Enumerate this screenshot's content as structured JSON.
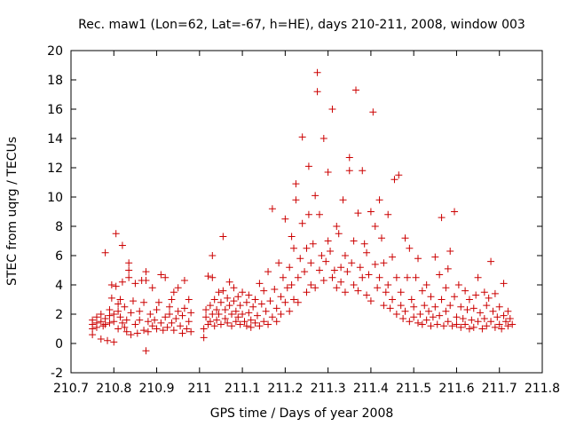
{
  "chart_data": {
    "type": "scatter",
    "title": "Rec. maw1 (Lon=62, Lat=-67, h=HE), days 210-211, 2008, window 003",
    "xlabel": "GPS time / Days of year 2008",
    "ylabel": "STEC from uqrg / TECUs",
    "xlim": [
      210.7,
      211.8
    ],
    "ylim": [
      -2,
      20
    ],
    "x_ticks": [
      "210.7",
      "210.8",
      "210.9",
      "211",
      "211.1",
      "211.2",
      "211.3",
      "211.4",
      "211.5",
      "211.6",
      "211.7",
      "211.8"
    ],
    "y_ticks": [
      "-2",
      "0",
      "2",
      "4",
      "6",
      "8",
      "10",
      "12",
      "14",
      "16",
      "18",
      "20"
    ],
    "grid": false,
    "legend": "none",
    "marker": "plus",
    "marker_color": "#cc0000",
    "axis_color": "#000000",
    "background": "#ffffff",
    "points": [
      [
        210.75,
        1.6
      ],
      [
        210.75,
        1.3
      ],
      [
        210.75,
        1.0
      ],
      [
        210.75,
        0.6
      ],
      [
        210.76,
        1.8
      ],
      [
        210.76,
        1.4
      ],
      [
        210.76,
        1.1
      ],
      [
        210.77,
        0.3
      ],
      [
        210.77,
        2.0
      ],
      [
        210.77,
        1.5
      ],
      [
        210.775,
        1.2
      ],
      [
        210.78,
        6.2
      ],
      [
        210.78,
        1.7
      ],
      [
        210.78,
        1.3
      ],
      [
        210.785,
        0.2
      ],
      [
        210.79,
        2.3
      ],
      [
        210.79,
        1.9
      ],
      [
        210.79,
        1.4
      ],
      [
        210.795,
        3.1
      ],
      [
        210.795,
        4.0
      ],
      [
        210.8,
        0.1
      ],
      [
        210.8,
        2.0
      ],
      [
        210.8,
        1.5
      ],
      [
        210.805,
        7.5
      ],
      [
        210.805,
        3.9
      ],
      [
        210.81,
        2.7
      ],
      [
        210.81,
        2.2
      ],
      [
        210.81,
        1.0
      ],
      [
        210.815,
        3.0
      ],
      [
        210.815,
        1.8
      ],
      [
        210.82,
        6.7
      ],
      [
        210.82,
        4.2
      ],
      [
        210.82,
        1.4
      ],
      [
        210.825,
        1.1
      ],
      [
        210.825,
        2.5
      ],
      [
        210.83,
        0.8
      ],
      [
        210.83,
        1.6
      ],
      [
        210.835,
        5.5
      ],
      [
        210.835,
        5.0
      ],
      [
        210.835,
        4.5
      ],
      [
        210.84,
        2.1
      ],
      [
        210.84,
        0.6
      ],
      [
        210.845,
        2.9
      ],
      [
        210.85,
        4.1
      ],
      [
        210.85,
        1.3
      ],
      [
        210.855,
        0.7
      ],
      [
        210.86,
        2.2
      ],
      [
        210.86,
        1.6
      ],
      [
        210.865,
        4.3
      ],
      [
        210.87,
        0.9
      ],
      [
        210.87,
        2.8
      ],
      [
        210.875,
        4.9
      ],
      [
        210.875,
        4.3
      ],
      [
        210.875,
        -0.5
      ],
      [
        210.88,
        1.5
      ],
      [
        210.88,
        0.8
      ],
      [
        210.885,
        2.0
      ],
      [
        210.89,
        3.8
      ],
      [
        210.89,
        1.2
      ],
      [
        210.895,
        1.6
      ],
      [
        210.9,
        1.0
      ],
      [
        210.9,
        2.3
      ],
      [
        210.905,
        2.8
      ],
      [
        210.91,
        4.7
      ],
      [
        210.91,
        1.4
      ],
      [
        210.915,
        0.9
      ],
      [
        210.92,
        4.5
      ],
      [
        210.92,
        1.8
      ],
      [
        210.925,
        1.1
      ],
      [
        210.93,
        2.5
      ],
      [
        210.93,
        2.0
      ],
      [
        210.935,
        3.0
      ],
      [
        210.935,
        1.4
      ],
      [
        210.94,
        3.5
      ],
      [
        210.94,
        0.9
      ],
      [
        210.945,
        1.7
      ],
      [
        210.95,
        2.2
      ],
      [
        210.95,
        3.8
      ],
      [
        210.955,
        1.2
      ],
      [
        210.96,
        0.7
      ],
      [
        210.96,
        1.9
      ],
      [
        210.965,
        4.3
      ],
      [
        210.965,
        2.4
      ],
      [
        210.97,
        1.0
      ],
      [
        210.975,
        1.5
      ],
      [
        210.975,
        3.0
      ],
      [
        210.98,
        2.1
      ],
      [
        210.98,
        0.8
      ],
      [
        211.01,
        1.0
      ],
      [
        211.01,
        0.4
      ],
      [
        211.015,
        1.8
      ],
      [
        211.015,
        2.3
      ],
      [
        211.02,
        1.3
      ],
      [
        211.02,
        4.6
      ],
      [
        211.025,
        2.6
      ],
      [
        211.025,
        1.5
      ],
      [
        211.03,
        6.0
      ],
      [
        211.03,
        4.5
      ],
      [
        211.03,
        2.0
      ],
      [
        211.035,
        1.2
      ],
      [
        211.035,
        3.0
      ],
      [
        211.04,
        2.3
      ],
      [
        211.04,
        1.6
      ],
      [
        211.045,
        3.5
      ],
      [
        211.045,
        2.0
      ],
      [
        211.05,
        2.8
      ],
      [
        211.05,
        1.3
      ],
      [
        211.055,
        7.3
      ],
      [
        211.055,
        3.6
      ],
      [
        211.06,
        2.3
      ],
      [
        211.06,
        1.7
      ],
      [
        211.065,
        3.1
      ],
      [
        211.065,
        1.4
      ],
      [
        211.07,
        4.2
      ],
      [
        211.07,
        2.6
      ],
      [
        211.075,
        2.0
      ],
      [
        211.075,
        1.2
      ],
      [
        211.08,
        3.8
      ],
      [
        211.08,
        2.9
      ],
      [
        211.085,
        2.2
      ],
      [
        211.085,
        1.5
      ],
      [
        211.09,
        3.2
      ],
      [
        211.09,
        1.8
      ],
      [
        211.095,
        2.6
      ],
      [
        211.095,
        1.3
      ],
      [
        211.1,
        3.5
      ],
      [
        211.1,
        2.0
      ],
      [
        211.105,
        1.5
      ],
      [
        211.11,
        2.8
      ],
      [
        211.11,
        1.2
      ],
      [
        211.115,
        3.3
      ],
      [
        211.115,
        2.1
      ],
      [
        211.12,
        1.6
      ],
      [
        211.12,
        1.1
      ],
      [
        211.125,
        2.5
      ],
      [
        211.13,
        3.0
      ],
      [
        211.13,
        1.4
      ],
      [
        211.135,
        1.9
      ],
      [
        211.14,
        4.1
      ],
      [
        211.14,
        1.2
      ],
      [
        211.145,
        2.7
      ],
      [
        211.15,
        1.5
      ],
      [
        211.15,
        3.6
      ],
      [
        211.155,
        2.2
      ],
      [
        211.16,
        4.9
      ],
      [
        211.16,
        1.3
      ],
      [
        211.165,
        2.9
      ],
      [
        211.17,
        9.2
      ],
      [
        211.17,
        1.8
      ],
      [
        211.175,
        3.7
      ],
      [
        211.18,
        2.4
      ],
      [
        211.18,
        1.5
      ],
      [
        211.185,
        5.5
      ],
      [
        211.19,
        3.2
      ],
      [
        211.19,
        2.0
      ],
      [
        211.195,
        4.5
      ],
      [
        211.2,
        8.5
      ],
      [
        211.2,
        2.8
      ],
      [
        211.205,
        3.8
      ],
      [
        211.21,
        2.2
      ],
      [
        211.21,
        5.2
      ],
      [
        211.215,
        7.3
      ],
      [
        211.215,
        4.0
      ],
      [
        211.22,
        6.5
      ],
      [
        211.22,
        3.0
      ],
      [
        211.225,
        9.8
      ],
      [
        211.225,
        10.9
      ],
      [
        211.23,
        4.5
      ],
      [
        211.23,
        2.8
      ],
      [
        211.235,
        5.8
      ],
      [
        211.24,
        8.2
      ],
      [
        211.24,
        14.1
      ],
      [
        211.245,
        4.9
      ],
      [
        211.25,
        6.5
      ],
      [
        211.25,
        3.5
      ],
      [
        211.255,
        12.1
      ],
      [
        211.255,
        8.8
      ],
      [
        211.26,
        5.5
      ],
      [
        211.26,
        4.0
      ],
      [
        211.265,
        6.8
      ],
      [
        211.27,
        10.1
      ],
      [
        211.27,
        3.8
      ],
      [
        211.275,
        18.5
      ],
      [
        211.275,
        17.2
      ],
      [
        211.28,
        8.8
      ],
      [
        211.28,
        5.0
      ],
      [
        211.285,
        6.0
      ],
      [
        211.29,
        14.0
      ],
      [
        211.29,
        4.3
      ],
      [
        211.295,
        5.6
      ],
      [
        211.3,
        11.7
      ],
      [
        211.3,
        7.0
      ],
      [
        211.305,
        6.3
      ],
      [
        211.31,
        16.0
      ],
      [
        211.31,
        4.5
      ],
      [
        211.315,
        5.0
      ],
      [
        211.32,
        8.0
      ],
      [
        211.32,
        3.8
      ],
      [
        211.325,
        7.5
      ],
      [
        211.33,
        5.2
      ],
      [
        211.33,
        4.2
      ],
      [
        211.335,
        9.8
      ],
      [
        211.34,
        6.0
      ],
      [
        211.34,
        3.5
      ],
      [
        211.345,
        4.9
      ],
      [
        211.35,
        12.7
      ],
      [
        211.35,
        11.8
      ],
      [
        211.355,
        5.5
      ],
      [
        211.36,
        4.0
      ],
      [
        211.36,
        7.0
      ],
      [
        211.365,
        17.3
      ],
      [
        211.37,
        8.9
      ],
      [
        211.37,
        3.6
      ],
      [
        211.375,
        5.2
      ],
      [
        211.38,
        11.8
      ],
      [
        211.38,
        4.5
      ],
      [
        211.385,
        6.8
      ],
      [
        211.39,
        3.3
      ],
      [
        211.39,
        6.2
      ],
      [
        211.395,
        4.7
      ],
      [
        211.4,
        9.0
      ],
      [
        211.4,
        2.9
      ],
      [
        211.405,
        15.8
      ],
      [
        211.41,
        8.0
      ],
      [
        211.41,
        5.4
      ],
      [
        211.415,
        3.8
      ],
      [
        211.42,
        9.8
      ],
      [
        211.42,
        4.5
      ],
      [
        211.425,
        7.2
      ],
      [
        211.43,
        2.6
      ],
      [
        211.43,
        5.5
      ],
      [
        211.435,
        3.5
      ],
      [
        211.44,
        8.8
      ],
      [
        211.44,
        4.0
      ],
      [
        211.445,
        2.4
      ],
      [
        211.45,
        5.9
      ],
      [
        211.45,
        3.0
      ],
      [
        211.455,
        11.2
      ],
      [
        211.46,
        2.0
      ],
      [
        211.46,
        4.5
      ],
      [
        211.465,
        11.5
      ],
      [
        211.47,
        2.6
      ],
      [
        211.47,
        3.5
      ],
      [
        211.475,
        1.7
      ],
      [
        211.48,
        7.2
      ],
      [
        211.48,
        2.2
      ],
      [
        211.485,
        4.5
      ],
      [
        211.49,
        1.5
      ],
      [
        211.49,
        6.5
      ],
      [
        211.495,
        3.0
      ],
      [
        211.5,
        1.8
      ],
      [
        211.5,
        2.5
      ],
      [
        211.505,
        4.5
      ],
      [
        211.51,
        1.4
      ],
      [
        211.51,
        5.8
      ],
      [
        211.515,
        2.0
      ],
      [
        211.52,
        3.6
      ],
      [
        211.52,
        1.3
      ],
      [
        211.525,
        2.6
      ],
      [
        211.53,
        1.6
      ],
      [
        211.53,
        4.0
      ],
      [
        211.535,
        2.2
      ],
      [
        211.54,
        1.2
      ],
      [
        211.54,
        3.2
      ],
      [
        211.545,
        1.8
      ],
      [
        211.55,
        5.9
      ],
      [
        211.55,
        2.5
      ],
      [
        211.555,
        1.3
      ],
      [
        211.56,
        4.7
      ],
      [
        211.56,
        1.9
      ],
      [
        211.565,
        8.6
      ],
      [
        211.565,
        3.0
      ],
      [
        211.57,
        1.2
      ],
      [
        211.575,
        3.8
      ],
      [
        211.575,
        2.2
      ],
      [
        211.58,
        5.1
      ],
      [
        211.58,
        1.5
      ],
      [
        211.585,
        6.3
      ],
      [
        211.585,
        2.6
      ],
      [
        211.59,
        1.2
      ],
      [
        211.595,
        9.0
      ],
      [
        211.595,
        3.2
      ],
      [
        211.6,
        1.8
      ],
      [
        211.6,
        1.3
      ],
      [
        211.605,
        4.0
      ],
      [
        211.61,
        2.5
      ],
      [
        211.61,
        1.1
      ],
      [
        211.615,
        1.7
      ],
      [
        211.62,
        3.6
      ],
      [
        211.62,
        1.3
      ],
      [
        211.625,
        2.3
      ],
      [
        211.63,
        1.0
      ],
      [
        211.63,
        3.0
      ],
      [
        211.635,
        1.6
      ],
      [
        211.64,
        2.4
      ],
      [
        211.64,
        1.1
      ],
      [
        211.645,
        3.3
      ],
      [
        211.65,
        1.5
      ],
      [
        211.65,
        4.5
      ],
      [
        211.655,
        2.1
      ],
      [
        211.66,
        1.0
      ],
      [
        211.665,
        3.5
      ],
      [
        211.665,
        1.7
      ],
      [
        211.67,
        2.6
      ],
      [
        211.67,
        1.2
      ],
      [
        211.675,
        3.1
      ],
      [
        211.68,
        5.6
      ],
      [
        211.68,
        1.5
      ],
      [
        211.685,
        2.2
      ],
      [
        211.69,
        1.1
      ],
      [
        211.69,
        3.4
      ],
      [
        211.695,
        1.8
      ],
      [
        211.7,
        2.5
      ],
      [
        211.7,
        1.3
      ],
      [
        211.705,
        1.0
      ],
      [
        211.71,
        4.1
      ],
      [
        211.71,
        1.9
      ],
      [
        211.715,
        1.5
      ],
      [
        211.72,
        2.2
      ],
      [
        211.72,
        1.2
      ],
      [
        211.725,
        1.7
      ],
      [
        211.73,
        1.3
      ]
    ]
  }
}
